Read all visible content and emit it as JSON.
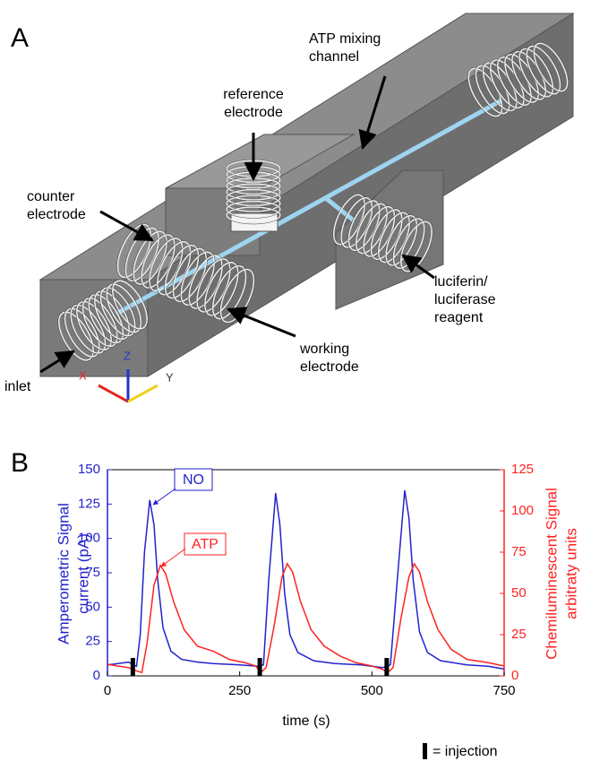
{
  "panel_a": {
    "label": "A",
    "callouts": [
      {
        "lines": [
          "ATP mixing",
          "channel"
        ]
      },
      {
        "lines": [
          "reference",
          "electrode"
        ]
      },
      {
        "lines": [
          "counter",
          "electrode"
        ]
      },
      {
        "lines": [
          "luciferin/",
          "luciferase",
          "reagent"
        ]
      },
      {
        "lines": [
          "working",
          "electrode"
        ]
      },
      {
        "lines": [
          "inlet"
        ]
      }
    ],
    "axes": {
      "x": "X",
      "y": "Y",
      "z": "Z"
    }
  },
  "chart_data": {
    "type": "line",
    "panel_label": "B",
    "x_label": "time (s)",
    "y_label": [
      "Amperometric Signal",
      "current (pA)"
    ],
    "y2_label": [
      "Chemiluminescent Signal",
      "arbitraty units"
    ],
    "xlim": [
      0,
      750
    ],
    "xticks": [
      0,
      250,
      500,
      750
    ],
    "ylim": [
      0,
      150
    ],
    "yticks": [
      0,
      25,
      50,
      75,
      100,
      125,
      150
    ],
    "y2lim": [
      0,
      125
    ],
    "y2ticks": [
      0,
      25,
      50,
      75,
      100,
      125
    ],
    "series": [
      {
        "name": "NO",
        "color": "#2222cc",
        "x": [
          0,
          20,
          40,
          55,
          62,
          70,
          80,
          88,
          95,
          105,
          120,
          140,
          170,
          200,
          250,
          285,
          295,
          305,
          318,
          326,
          335,
          345,
          360,
          390,
          430,
          480,
          520,
          535,
          548,
          562,
          570,
          578,
          590,
          605,
          630,
          680,
          720,
          750
        ],
        "values": [
          8,
          9,
          10,
          7,
          30,
          90,
          128,
          110,
          70,
          35,
          18,
          12,
          10,
          9,
          8,
          7,
          8,
          70,
          133,
          110,
          60,
          30,
          17,
          11,
          9,
          8,
          6,
          8,
          70,
          135,
          115,
          70,
          32,
          17,
          11,
          8,
          7,
          5
        ]
      },
      {
        "name": "ATP",
        "color": "#ff2222",
        "axis": "y2",
        "x": [
          0,
          20,
          40,
          55,
          65,
          75,
          88,
          100,
          110,
          125,
          145,
          170,
          200,
          230,
          260,
          280,
          290,
          300,
          315,
          330,
          340,
          350,
          365,
          385,
          410,
          440,
          470,
          500,
          520,
          530,
          540,
          555,
          570,
          580,
          590,
          605,
          625,
          650,
          680,
          720,
          750
        ],
        "values": [
          7,
          6,
          5,
          3,
          2,
          20,
          55,
          67,
          62,
          45,
          28,
          18,
          15,
          10,
          8,
          6,
          2,
          5,
          30,
          60,
          68,
          63,
          45,
          28,
          18,
          12,
          8,
          6,
          4,
          2,
          5,
          35,
          60,
          68,
          63,
          45,
          28,
          16,
          10,
          8,
          6
        ]
      }
    ],
    "injections": [
      48,
      288,
      528
    ],
    "injection_legend": "= injection"
  }
}
